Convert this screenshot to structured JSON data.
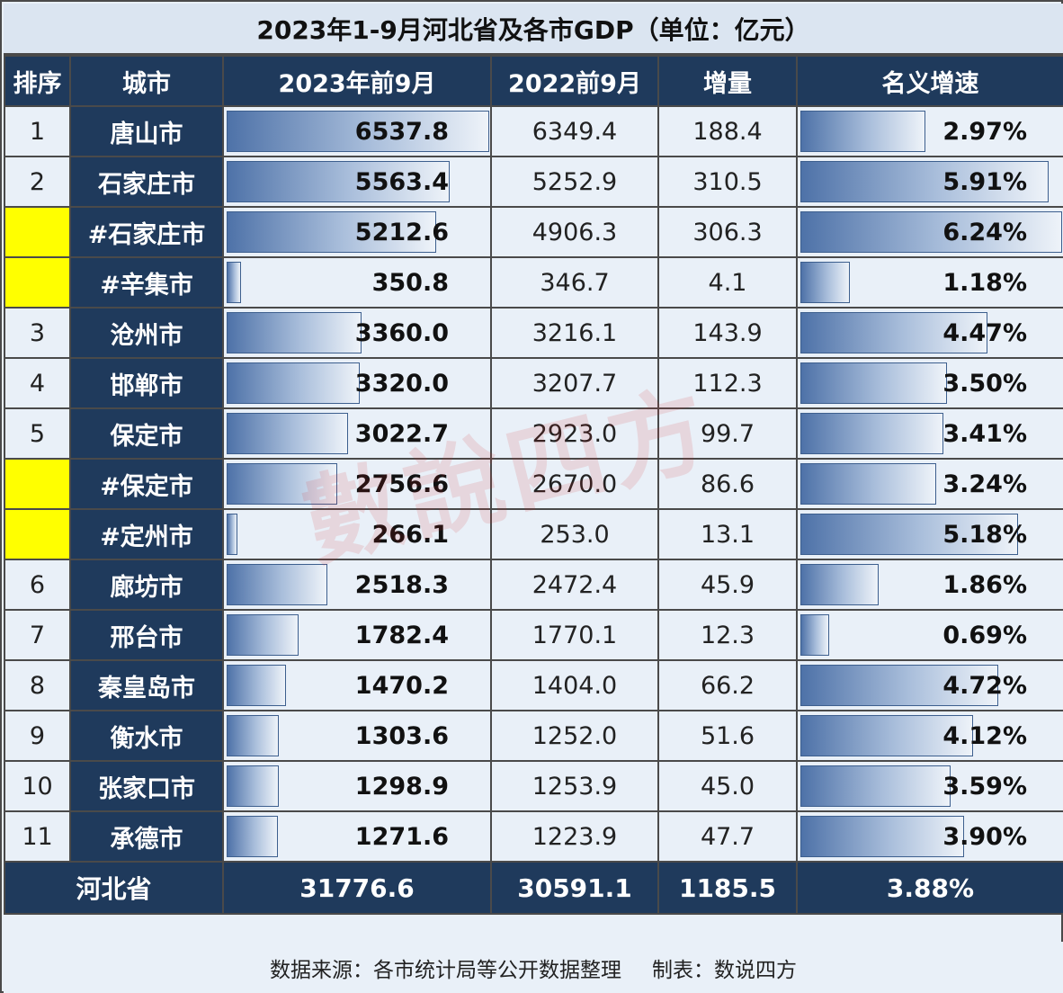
{
  "title": "2023年1-9月河北省及各市GDP（单位：亿元）",
  "headers": {
    "rank": "排序",
    "city": "城市",
    "gdp_2023": "2023年前9月",
    "gdp_2022": "2022前9月",
    "increase": "增量",
    "growth": "名义增速"
  },
  "chart_data": {
    "type": "table",
    "title": "2023年1-9月河北省及各市GDP（单位：亿元）",
    "columns": [
      "排序",
      "城市",
      "2023年前9月",
      "2022前9月",
      "增量",
      "名义增速"
    ],
    "rows": [
      {
        "rank": "1",
        "city": "唐山市",
        "gdp_2023": "6537.8",
        "gdp_2022": "6349.4",
        "increase": "188.4",
        "growth": "2.97%",
        "v2023": 6537.8,
        "vgrowth": 2.97,
        "highlight": false
      },
      {
        "rank": "2",
        "city": "石家庄市",
        "gdp_2023": "5563.4",
        "gdp_2022": "5252.9",
        "increase": "310.5",
        "growth": "5.91%",
        "v2023": 5563.4,
        "vgrowth": 5.91,
        "highlight": false
      },
      {
        "rank": "",
        "city": "#石家庄市",
        "gdp_2023": "5212.6",
        "gdp_2022": "4906.3",
        "increase": "306.3",
        "growth": "6.24%",
        "v2023": 5212.6,
        "vgrowth": 6.24,
        "highlight": true
      },
      {
        "rank": "",
        "city": "#辛集市",
        "gdp_2023": "350.8",
        "gdp_2022": "346.7",
        "increase": "4.1",
        "growth": "1.18%",
        "v2023": 350.8,
        "vgrowth": 1.18,
        "highlight": true
      },
      {
        "rank": "3",
        "city": "沧州市",
        "gdp_2023": "3360.0",
        "gdp_2022": "3216.1",
        "increase": "143.9",
        "growth": "4.47%",
        "v2023": 3360.0,
        "vgrowth": 4.47,
        "highlight": false
      },
      {
        "rank": "4",
        "city": "邯郸市",
        "gdp_2023": "3320.0",
        "gdp_2022": "3207.7",
        "increase": "112.3",
        "growth": "3.50%",
        "v2023": 3320.0,
        "vgrowth": 3.5,
        "highlight": false
      },
      {
        "rank": "5",
        "city": "保定市",
        "gdp_2023": "3022.7",
        "gdp_2022": "2923.0",
        "increase": "99.7",
        "growth": "3.41%",
        "v2023": 3022.7,
        "vgrowth": 3.41,
        "highlight": false
      },
      {
        "rank": "",
        "city": "#保定市",
        "gdp_2023": "2756.6",
        "gdp_2022": "2670.0",
        "increase": "86.6",
        "growth": "3.24%",
        "v2023": 2756.6,
        "vgrowth": 3.24,
        "highlight": true
      },
      {
        "rank": "",
        "city": "#定州市",
        "gdp_2023": "266.1",
        "gdp_2022": "253.0",
        "increase": "13.1",
        "growth": "5.18%",
        "v2023": 266.1,
        "vgrowth": 5.18,
        "highlight": true
      },
      {
        "rank": "6",
        "city": "廊坊市",
        "gdp_2023": "2518.3",
        "gdp_2022": "2472.4",
        "increase": "45.9",
        "growth": "1.86%",
        "v2023": 2518.3,
        "vgrowth": 1.86,
        "highlight": false
      },
      {
        "rank": "7",
        "city": "邢台市",
        "gdp_2023": "1782.4",
        "gdp_2022": "1770.1",
        "increase": "12.3",
        "growth": "0.69%",
        "v2023": 1782.4,
        "vgrowth": 0.69,
        "highlight": false
      },
      {
        "rank": "8",
        "city": "秦皇岛市",
        "gdp_2023": "1470.2",
        "gdp_2022": "1404.0",
        "increase": "66.2",
        "growth": "4.72%",
        "v2023": 1470.2,
        "vgrowth": 4.72,
        "highlight": false
      },
      {
        "rank": "9",
        "city": "衡水市",
        "gdp_2023": "1303.6",
        "gdp_2022": "1252.0",
        "increase": "51.6",
        "growth": "4.12%",
        "v2023": 1303.6,
        "vgrowth": 4.12,
        "highlight": false
      },
      {
        "rank": "10",
        "city": "张家口市",
        "gdp_2023": "1298.9",
        "gdp_2022": "1253.9",
        "increase": "45.0",
        "growth": "3.59%",
        "v2023": 1298.9,
        "vgrowth": 3.59,
        "highlight": false
      },
      {
        "rank": "11",
        "city": "承德市",
        "gdp_2023": "1271.6",
        "gdp_2022": "1223.9",
        "increase": "47.7",
        "growth": "3.90%",
        "v2023": 1271.6,
        "vgrowth": 3.9,
        "highlight": false
      }
    ],
    "total": {
      "city": "河北省",
      "gdp_2023": "31776.6",
      "gdp_2022": "30591.1",
      "increase": "1185.5",
      "growth": "3.88%"
    },
    "gdp_bar_max": 6537.8,
    "growth_bar_max": 6.24
  },
  "footer": {
    "source": "数据来源：各市统计局等公开数据整理",
    "maker": "制表：数说四方"
  },
  "watermark": "數說四方",
  "colors": {
    "header_bg": "#1f3a5c",
    "cell_bg": "#e9f0f8",
    "highlight": "#ffff00",
    "bar_dark": "#4e72a8"
  }
}
